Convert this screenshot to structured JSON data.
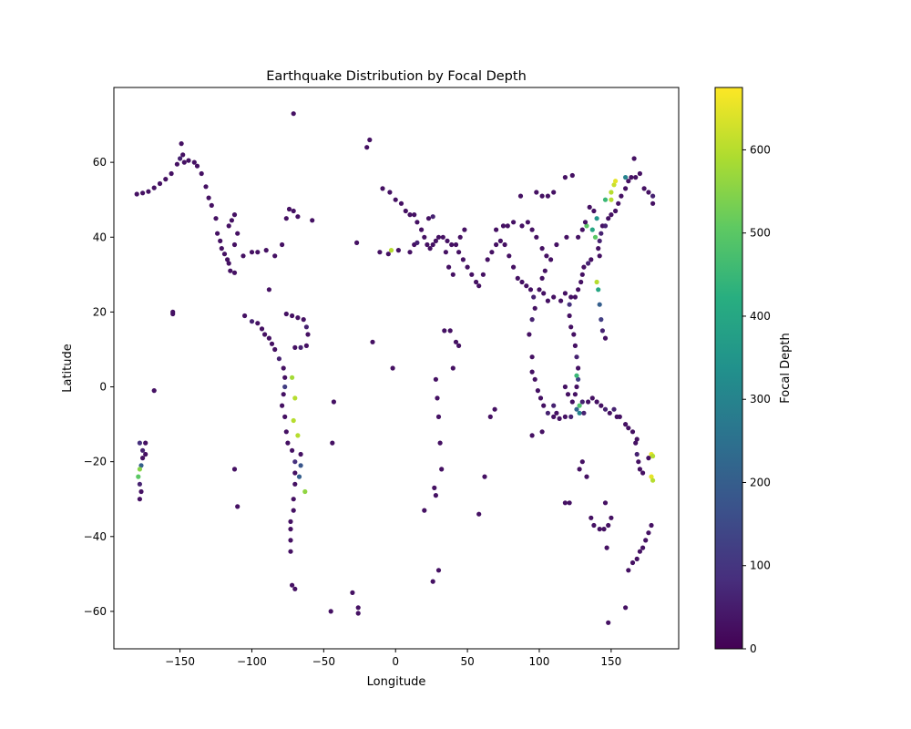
{
  "chart_data": {
    "type": "scatter",
    "title": "Earthquake Distribution by Focal Depth",
    "xlabel": "Longitude",
    "ylabel": "Latitude",
    "xlim": [
      -196,
      197
    ],
    "ylim": [
      -70,
      80
    ],
    "xticks": [
      -150,
      -100,
      -50,
      0,
      50,
      100,
      150
    ],
    "yticks": [
      -60,
      -40,
      -20,
      0,
      20,
      40,
      60
    ],
    "grid": false,
    "colorbar": {
      "label": "Focal Depth",
      "colormap": "viridis",
      "range": [
        0,
        675
      ],
      "ticks": [
        0,
        100,
        200,
        300,
        400,
        500,
        600
      ]
    },
    "points": [
      [
        -180,
        51.5,
        30
      ],
      [
        -176,
        51.8,
        30
      ],
      [
        -172,
        52.2,
        30
      ],
      [
        -168,
        53.2,
        30
      ],
      [
        -164,
        54.3,
        30
      ],
      [
        -160,
        55.5,
        30
      ],
      [
        -156,
        57,
        30
      ],
      [
        -152,
        59.5,
        30
      ],
      [
        -150,
        61,
        60
      ],
      [
        -148,
        62,
        30
      ],
      [
        -149,
        65,
        30
      ],
      [
        -147,
        60,
        30
      ],
      [
        -144,
        60.5,
        30
      ],
      [
        -140,
        60,
        30
      ],
      [
        -138,
        59,
        30
      ],
      [
        -135,
        57,
        30
      ],
      [
        -132,
        53.5,
        30
      ],
      [
        -130,
        50.5,
        30
      ],
      [
        -128,
        48.5,
        30
      ],
      [
        -125,
        45,
        30
      ],
      [
        -124,
        41,
        30
      ],
      [
        -122,
        39,
        30
      ],
      [
        -121,
        37,
        30
      ],
      [
        -119,
        35.5,
        30
      ],
      [
        -117,
        34,
        30
      ],
      [
        -116,
        33,
        30
      ],
      [
        -115,
        31,
        30
      ],
      [
        -116,
        43,
        30
      ],
      [
        -114,
        44.5,
        30
      ],
      [
        -112,
        46,
        30
      ],
      [
        -110,
        41,
        30
      ],
      [
        -112,
        38,
        30
      ],
      [
        -106,
        35,
        30
      ],
      [
        -100,
        36,
        30
      ],
      [
        -96,
        36,
        30
      ],
      [
        -90,
        36.5,
        30
      ],
      [
        -84,
        35,
        30
      ],
      [
        -79,
        38,
        30
      ],
      [
        -76,
        45,
        30
      ],
      [
        -74,
        47.5,
        30
      ],
      [
        -71,
        47,
        30
      ],
      [
        -68,
        45.5,
        30
      ],
      [
        -58,
        44.5,
        30
      ],
      [
        -88,
        26,
        30
      ],
      [
        -112,
        30.5,
        30
      ],
      [
        -105,
        19,
        30
      ],
      [
        -100,
        17.5,
        60
      ],
      [
        -96,
        17,
        30
      ],
      [
        -93,
        15.5,
        30
      ],
      [
        -91,
        14,
        30
      ],
      [
        -88,
        13,
        30
      ],
      [
        -86,
        11.5,
        30
      ],
      [
        -84,
        10,
        30
      ],
      [
        -81,
        7.5,
        60
      ],
      [
        -78,
        5,
        30
      ],
      [
        -77,
        2.5,
        30
      ],
      [
        -77,
        0,
        120
      ],
      [
        -78,
        -2,
        30
      ],
      [
        -79,
        -5,
        30
      ],
      [
        -77,
        -8,
        30
      ],
      [
        -76,
        -12,
        30
      ],
      [
        -75,
        -15,
        30
      ],
      [
        -72,
        -17,
        30
      ],
      [
        -70,
        -20,
        90
      ],
      [
        -70,
        -23,
        30
      ],
      [
        -70,
        -26,
        30
      ],
      [
        -71,
        -30,
        30
      ],
      [
        -71,
        -33,
        30
      ],
      [
        -73,
        -36,
        30
      ],
      [
        -73,
        -38,
        30
      ],
      [
        -73,
        -41,
        30
      ],
      [
        -73,
        -44,
        30
      ],
      [
        -72,
        -53,
        30
      ],
      [
        -70,
        -54,
        30
      ],
      [
        -66,
        -21,
        180
      ],
      [
        -67,
        -24,
        200
      ],
      [
        -63,
        -28,
        560
      ],
      [
        -71,
        -9,
        600
      ],
      [
        -70,
        -3,
        600
      ],
      [
        -72,
        2.5,
        580
      ],
      [
        -68,
        -13,
        600
      ],
      [
        -66,
        -18,
        30
      ],
      [
        -76,
        19.5,
        30
      ],
      [
        -72,
        19,
        30
      ],
      [
        -68,
        18.5,
        30
      ],
      [
        -64,
        18,
        30
      ],
      [
        -62,
        16,
        60
      ],
      [
        -61,
        14,
        30
      ],
      [
        -62,
        11,
        30
      ],
      [
        -66,
        10.5,
        60
      ],
      [
        -70,
        10.5,
        30
      ],
      [
        -155,
        19.5,
        30
      ],
      [
        -155,
        20,
        30
      ],
      [
        -168,
        -1,
        30
      ],
      [
        -112,
        -22,
        30
      ],
      [
        -110,
        -32,
        30
      ],
      [
        -26,
        -59,
        30
      ],
      [
        -30,
        -55,
        30
      ],
      [
        -45,
        -60,
        30
      ],
      [
        -20,
        64,
        30
      ],
      [
        -18,
        66,
        30
      ],
      [
        -71,
        73,
        30
      ],
      [
        -27,
        38.5,
        30
      ],
      [
        -11,
        36,
        30
      ],
      [
        -43,
        -4,
        30
      ],
      [
        -44,
        -15,
        30
      ],
      [
        -16,
        12,
        30
      ],
      [
        -2,
        5,
        30
      ],
      [
        -26,
        -60.5,
        30
      ],
      [
        -178,
        -15,
        90
      ],
      [
        -176,
        -17,
        60
      ],
      [
        -176,
        -19,
        30
      ],
      [
        -177,
        -21,
        200
      ],
      [
        -178,
        -22,
        550
      ],
      [
        -179,
        -24,
        500
      ],
      [
        -178,
        -26,
        60
      ],
      [
        -177,
        -28,
        30
      ],
      [
        -178,
        -30,
        30
      ],
      [
        -174,
        -15,
        30
      ],
      [
        -174,
        -18,
        30
      ],
      [
        -9,
        53,
        30
      ],
      [
        -4,
        52,
        30
      ],
      [
        0,
        50,
        30
      ],
      [
        4,
        49,
        30
      ],
      [
        7,
        47,
        30
      ],
      [
        10,
        46,
        30
      ],
      [
        13,
        46,
        30
      ],
      [
        15,
        44,
        30
      ],
      [
        18,
        42,
        30
      ],
      [
        20,
        40,
        30
      ],
      [
        22,
        38,
        30
      ],
      [
        24,
        37,
        30
      ],
      [
        26,
        38,
        30
      ],
      [
        28,
        39,
        30
      ],
      [
        30,
        40,
        30
      ],
      [
        33,
        40,
        30
      ],
      [
        36,
        39,
        30
      ],
      [
        39,
        38,
        30
      ],
      [
        42,
        38,
        30
      ],
      [
        44,
        36,
        30
      ],
      [
        47,
        34,
        30
      ],
      [
        50,
        32,
        30
      ],
      [
        53,
        30,
        30
      ],
      [
        56,
        28,
        30
      ],
      [
        58,
        27,
        30
      ],
      [
        61,
        30,
        30
      ],
      [
        64,
        34,
        30
      ],
      [
        67,
        36,
        30
      ],
      [
        70,
        38,
        30
      ],
      [
        73,
        39,
        30
      ],
      [
        76,
        38,
        30
      ],
      [
        79,
        35,
        30
      ],
      [
        82,
        32,
        30
      ],
      [
        85,
        29,
        30
      ],
      [
        88,
        28,
        30
      ],
      [
        91,
        27,
        30
      ],
      [
        94,
        26,
        30
      ],
      [
        96,
        24,
        60
      ],
      [
        97,
        21,
        30
      ],
      [
        95,
        18,
        60
      ],
      [
        93,
        14,
        30
      ],
      [
        95,
        8,
        30
      ],
      [
        95,
        4,
        30
      ],
      [
        97,
        2,
        30
      ],
      [
        99,
        -1,
        30
      ],
      [
        101,
        -3,
        30
      ],
      [
        103,
        -5,
        30
      ],
      [
        106,
        -7,
        60
      ],
      [
        110,
        -8,
        30
      ],
      [
        114,
        -8.5,
        30
      ],
      [
        118,
        -8,
        30
      ],
      [
        122,
        -8,
        60
      ],
      [
        126,
        -6,
        220
      ],
      [
        128,
        -5,
        480
      ],
      [
        130,
        -4,
        60
      ],
      [
        13,
        38,
        30
      ],
      [
        15,
        38.5,
        60
      ],
      [
        2,
        36.5,
        30
      ],
      [
        -3,
        36.5,
        600
      ],
      [
        -5,
        35.5,
        30
      ],
      [
        10,
        36,
        30
      ],
      [
        23,
        45,
        30
      ],
      [
        26,
        45.5,
        60
      ],
      [
        35,
        36,
        30
      ],
      [
        37,
        32,
        30
      ],
      [
        40,
        30,
        30
      ],
      [
        45,
        40,
        30
      ],
      [
        48,
        42,
        30
      ],
      [
        70,
        42,
        30
      ],
      [
        75,
        43,
        30
      ],
      [
        78,
        43,
        30
      ],
      [
        82,
        44,
        30
      ],
      [
        88,
        43,
        30
      ],
      [
        92,
        44,
        30
      ],
      [
        95,
        42,
        30
      ],
      [
        98,
        40,
        30
      ],
      [
        102,
        37,
        30
      ],
      [
        105,
        35,
        30
      ],
      [
        104,
        31,
        30
      ],
      [
        102,
        29,
        30
      ],
      [
        100,
        26,
        30
      ],
      [
        103,
        25,
        30
      ],
      [
        106,
        23,
        30
      ],
      [
        110,
        24,
        30
      ],
      [
        115,
        23,
        30
      ],
      [
        118,
        25,
        30
      ],
      [
        119,
        40,
        30
      ],
      [
        112,
        38,
        30
      ],
      [
        108,
        34,
        30
      ],
      [
        87,
        51,
        30
      ],
      [
        98,
        52,
        30
      ],
      [
        102,
        51,
        30
      ],
      [
        106,
        51,
        30
      ],
      [
        110,
        52,
        30
      ],
      [
        118,
        56,
        30
      ],
      [
        123,
        56.5,
        30
      ],
      [
        58,
        -34,
        30
      ],
      [
        62,
        -24,
        30
      ],
      [
        69,
        -6,
        30
      ],
      [
        66,
        -8,
        30
      ],
      [
        40,
        5,
        30
      ],
      [
        38,
        15,
        30
      ],
      [
        42,
        12,
        30
      ],
      [
        44,
        11,
        30
      ],
      [
        30,
        -8,
        30
      ],
      [
        29,
        -3,
        30
      ],
      [
        28,
        2,
        30
      ],
      [
        31,
        -15,
        30
      ],
      [
        32,
        -22,
        30
      ],
      [
        27,
        -27,
        30
      ],
      [
        28,
        -29,
        30
      ],
      [
        20,
        -33,
        30
      ],
      [
        34,
        15,
        30
      ],
      [
        30,
        -49,
        30
      ],
      [
        26,
        -52,
        30
      ],
      [
        122,
        24,
        30
      ],
      [
        121,
        22,
        90
      ],
      [
        121,
        19,
        30
      ],
      [
        122,
        16,
        30
      ],
      [
        124,
        14,
        30
      ],
      [
        125,
        11,
        30
      ],
      [
        126,
        8,
        60
      ],
      [
        127,
        5,
        30
      ],
      [
        127,
        2,
        120
      ],
      [
        126,
        0,
        30
      ],
      [
        125,
        -2,
        30
      ],
      [
        123,
        -4,
        30
      ],
      [
        120,
        -2,
        30
      ],
      [
        118,
        0,
        30
      ],
      [
        126,
        3,
        450
      ],
      [
        128,
        -7,
        300
      ],
      [
        131,
        -7,
        60
      ],
      [
        134,
        -4,
        30
      ],
      [
        137,
        -3,
        30
      ],
      [
        140,
        -4,
        30
      ],
      [
        143,
        -5,
        30
      ],
      [
        146,
        -6,
        60
      ],
      [
        149,
        -7,
        30
      ],
      [
        152,
        -6,
        60
      ],
      [
        154,
        -8,
        30
      ],
      [
        156,
        -8,
        30
      ],
      [
        160,
        -10,
        30
      ],
      [
        162,
        -11,
        30
      ],
      [
        165,
        -12,
        30
      ],
      [
        167,
        -15,
        30
      ],
      [
        168,
        -18,
        60
      ],
      [
        169,
        -20,
        30
      ],
      [
        170,
        -22,
        30
      ],
      [
        168,
        -14,
        30
      ],
      [
        172,
        -23,
        30
      ],
      [
        178,
        -18,
        650
      ],
      [
        179,
        -18.5,
        600
      ],
      [
        178,
        -24,
        650
      ],
      [
        179,
        -25,
        600
      ],
      [
        176,
        -19,
        30
      ],
      [
        110,
        -5,
        60
      ],
      [
        112,
        -7,
        30
      ],
      [
        102,
        -12,
        30
      ],
      [
        95,
        -13,
        30
      ],
      [
        142,
        35,
        30
      ],
      [
        141,
        37,
        30
      ],
      [
        142,
        39,
        60
      ],
      [
        143,
        41,
        60
      ],
      [
        144,
        43,
        30
      ],
      [
        146,
        43,
        60
      ],
      [
        148,
        45,
        30
      ],
      [
        150,
        46,
        30
      ],
      [
        153,
        47,
        30
      ],
      [
        155,
        49,
        30
      ],
      [
        157,
        51,
        30
      ],
      [
        160,
        53,
        30
      ],
      [
        162,
        55,
        30
      ],
      [
        164,
        56,
        30
      ],
      [
        167,
        56,
        30
      ],
      [
        170,
        57,
        30
      ],
      [
        173,
        53,
        30
      ],
      [
        176,
        52,
        30
      ],
      [
        179,
        51,
        60
      ],
      [
        179,
        49,
        30
      ],
      [
        136,
        34,
        30
      ],
      [
        134,
        33,
        60
      ],
      [
        131,
        32,
        30
      ],
      [
        130,
        30,
        30
      ],
      [
        129,
        28,
        30
      ],
      [
        127,
        26,
        30
      ],
      [
        125,
        24,
        30
      ],
      [
        140,
        28,
        600
      ],
      [
        141,
        26,
        400
      ],
      [
        142,
        22,
        200
      ],
      [
        143,
        18,
        120
      ],
      [
        144,
        15,
        60
      ],
      [
        146,
        13,
        30
      ],
      [
        140,
        45,
        350
      ],
      [
        138,
        47,
        30
      ],
      [
        135,
        48,
        30
      ],
      [
        137,
        42,
        400
      ],
      [
        139,
        40,
        500
      ],
      [
        133,
        43,
        500
      ],
      [
        132,
        44,
        30
      ],
      [
        150,
        52,
        600
      ],
      [
        152,
        54,
        620
      ],
      [
        153,
        55,
        650
      ],
      [
        150,
        50,
        600
      ],
      [
        146,
        50,
        450
      ],
      [
        160,
        56,
        300
      ],
      [
        166,
        61,
        30
      ],
      [
        130,
        42,
        30
      ],
      [
        127,
        40,
        30
      ],
      [
        136,
        -35,
        30
      ],
      [
        138,
        -37,
        30
      ],
      [
        142,
        -38,
        30
      ],
      [
        145,
        -38,
        30
      ],
      [
        148,
        -37,
        30
      ],
      [
        150,
        -35,
        30
      ],
      [
        147,
        -43,
        30
      ],
      [
        148,
        -63,
        30
      ],
      [
        160,
        -59,
        30
      ],
      [
        162,
        -49,
        30
      ],
      [
        165,
        -47,
        30
      ],
      [
        168,
        -46,
        30
      ],
      [
        170,
        -44,
        30
      ],
      [
        172,
        -43,
        30
      ],
      [
        174,
        -41,
        30
      ],
      [
        176,
        -39,
        30
      ],
      [
        178,
        -37,
        30
      ],
      [
        146,
        -31,
        30
      ],
      [
        118,
        -31,
        30
      ],
      [
        121,
        -31,
        30
      ],
      [
        130,
        -20,
        30
      ],
      [
        133,
        -24,
        30
      ],
      [
        128,
        -22,
        30
      ]
    ]
  }
}
